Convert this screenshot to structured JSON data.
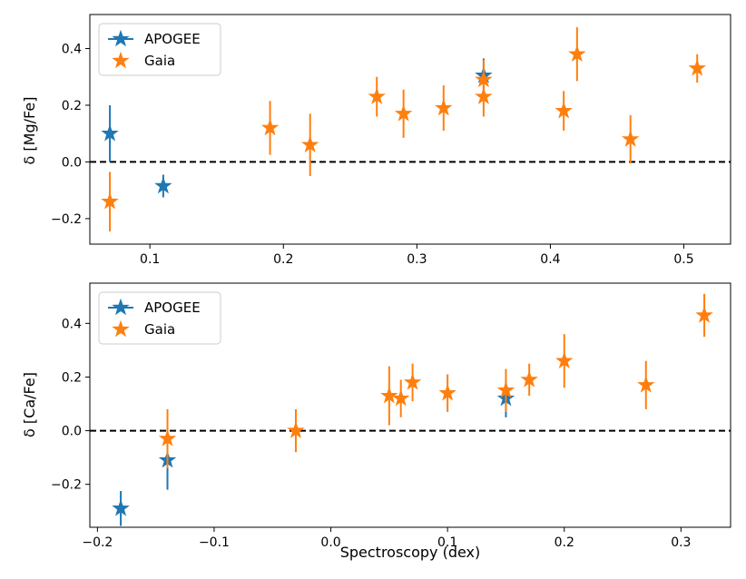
{
  "colors": {
    "apogee": "#1f77b4",
    "gaia": "#ff7f0e",
    "frame": "#000000",
    "zero_line": "#000000"
  },
  "chart_data": [
    {
      "type": "scatter",
      "ylabel": "δ [Mg/Fe]",
      "xlabel": "",
      "xlim": [
        0.055,
        0.535
      ],
      "ylim": [
        -0.29,
        0.52
      ],
      "xticks": [
        0.1,
        0.2,
        0.3,
        0.4,
        0.5
      ],
      "xtick_labels": [
        "0.1",
        "0.2",
        "0.3",
        "0.4",
        "0.5"
      ],
      "yticks": [
        -0.2,
        0.0,
        0.2,
        0.4
      ],
      "ytick_labels": [
        "−0.2",
        "0.0",
        "0.2",
        "0.4"
      ],
      "reference_line": 0,
      "legend_position": "top-left",
      "series": [
        {
          "name": "APOGEE",
          "marker": "star",
          "points": [
            {
              "x": 0.07,
              "y": 0.1,
              "err": 0.1
            },
            {
              "x": 0.11,
              "y": -0.085,
              "err": 0.04
            },
            {
              "x": 0.35,
              "y": 0.305,
              "err": 0.06
            }
          ]
        },
        {
          "name": "Gaia",
          "marker": "star",
          "points": [
            {
              "x": 0.07,
              "y": -0.14,
              "err": 0.105
            },
            {
              "x": 0.19,
              "y": 0.12,
              "err": 0.095
            },
            {
              "x": 0.22,
              "y": 0.06,
              "err": 0.11
            },
            {
              "x": 0.27,
              "y": 0.23,
              "err": 0.07
            },
            {
              "x": 0.29,
              "y": 0.17,
              "err": 0.085
            },
            {
              "x": 0.32,
              "y": 0.19,
              "err": 0.08
            },
            {
              "x": 0.35,
              "y": 0.29,
              "err": 0.07
            },
            {
              "x": 0.35,
              "y": 0.23,
              "err": 0.07
            },
            {
              "x": 0.41,
              "y": 0.18,
              "err": 0.07
            },
            {
              "x": 0.42,
              "y": 0.38,
              "err": 0.095
            },
            {
              "x": 0.46,
              "y": 0.08,
              "err": 0.085
            },
            {
              "x": 0.51,
              "y": 0.33,
              "err": 0.05
            }
          ]
        }
      ]
    },
    {
      "type": "scatter",
      "ylabel": "δ [Ca/Fe]",
      "xlabel": "Spectroscopy (dex)",
      "xlim": [
        -0.2065,
        0.3425
      ],
      "ylim": [
        -0.36,
        0.55
      ],
      "xticks": [
        -0.2,
        -0.1,
        0.0,
        0.1,
        0.2,
        0.3
      ],
      "xtick_labels": [
        "−0.2",
        "−0.1",
        "0.0",
        "0.1",
        "0.2",
        "0.3"
      ],
      "yticks": [
        -0.2,
        0.0,
        0.2,
        0.4
      ],
      "ytick_labels": [
        "−0.2",
        "0.0",
        "0.2",
        "0.4"
      ],
      "reference_line": 0,
      "legend_position": "top-left",
      "series": [
        {
          "name": "APOGEE",
          "marker": "star",
          "points": [
            {
              "x": -0.18,
              "y": -0.29,
              "err": 0.065
            },
            {
              "x": -0.14,
              "y": -0.11,
              "err": 0.11
            },
            {
              "x": 0.15,
              "y": 0.12,
              "err": 0.07
            }
          ]
        },
        {
          "name": "Gaia",
          "marker": "star",
          "points": [
            {
              "x": -0.14,
              "y": -0.03,
              "err": 0.11
            },
            {
              "x": -0.03,
              "y": 0.0,
              "err": 0.08
            },
            {
              "x": 0.05,
              "y": 0.13,
              "err": 0.11
            },
            {
              "x": 0.06,
              "y": 0.12,
              "err": 0.07
            },
            {
              "x": 0.07,
              "y": 0.18,
              "err": 0.07
            },
            {
              "x": 0.1,
              "y": 0.14,
              "err": 0.07
            },
            {
              "x": 0.15,
              "y": 0.15,
              "err": 0.08
            },
            {
              "x": 0.17,
              "y": 0.19,
              "err": 0.06
            },
            {
              "x": 0.2,
              "y": 0.26,
              "err": 0.1
            },
            {
              "x": 0.27,
              "y": 0.17,
              "err": 0.09
            },
            {
              "x": 0.32,
              "y": 0.43,
              "err": 0.08
            }
          ]
        }
      ]
    }
  ]
}
